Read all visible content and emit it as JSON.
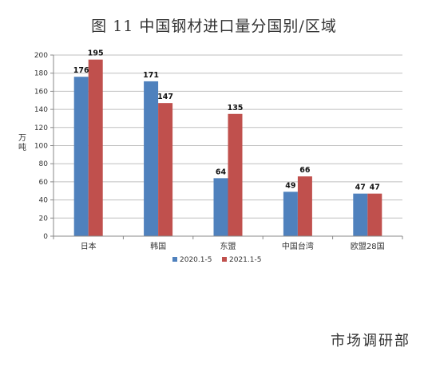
{
  "page": {
    "title": "图 11  中国钢材进口量分国别/区域",
    "source": "市场调研部"
  },
  "colors": {
    "series1": "#4f81bd",
    "series2": "#c0504d",
    "grid": "#bfbfbf",
    "axis": "#888888"
  },
  "chart_data": {
    "type": "bar",
    "title": "图 11  中国钢材进口量分国别/区域",
    "ylabel": "万吨",
    "xlabel": "",
    "ylim": [
      0,
      200
    ],
    "yticks": [
      0,
      20,
      40,
      60,
      80,
      100,
      120,
      140,
      160,
      180,
      200
    ],
    "grid": true,
    "legend_position": "bottom",
    "categories": [
      "日本",
      "韩国",
      "东盟",
      "中国台湾",
      "欧盟28国"
    ],
    "series": [
      {
        "name": "2020.1-5",
        "values": [
          176,
          171,
          64,
          49,
          47
        ]
      },
      {
        "name": "2021.1-5",
        "values": [
          195,
          147,
          135,
          66,
          47
        ]
      }
    ]
  }
}
